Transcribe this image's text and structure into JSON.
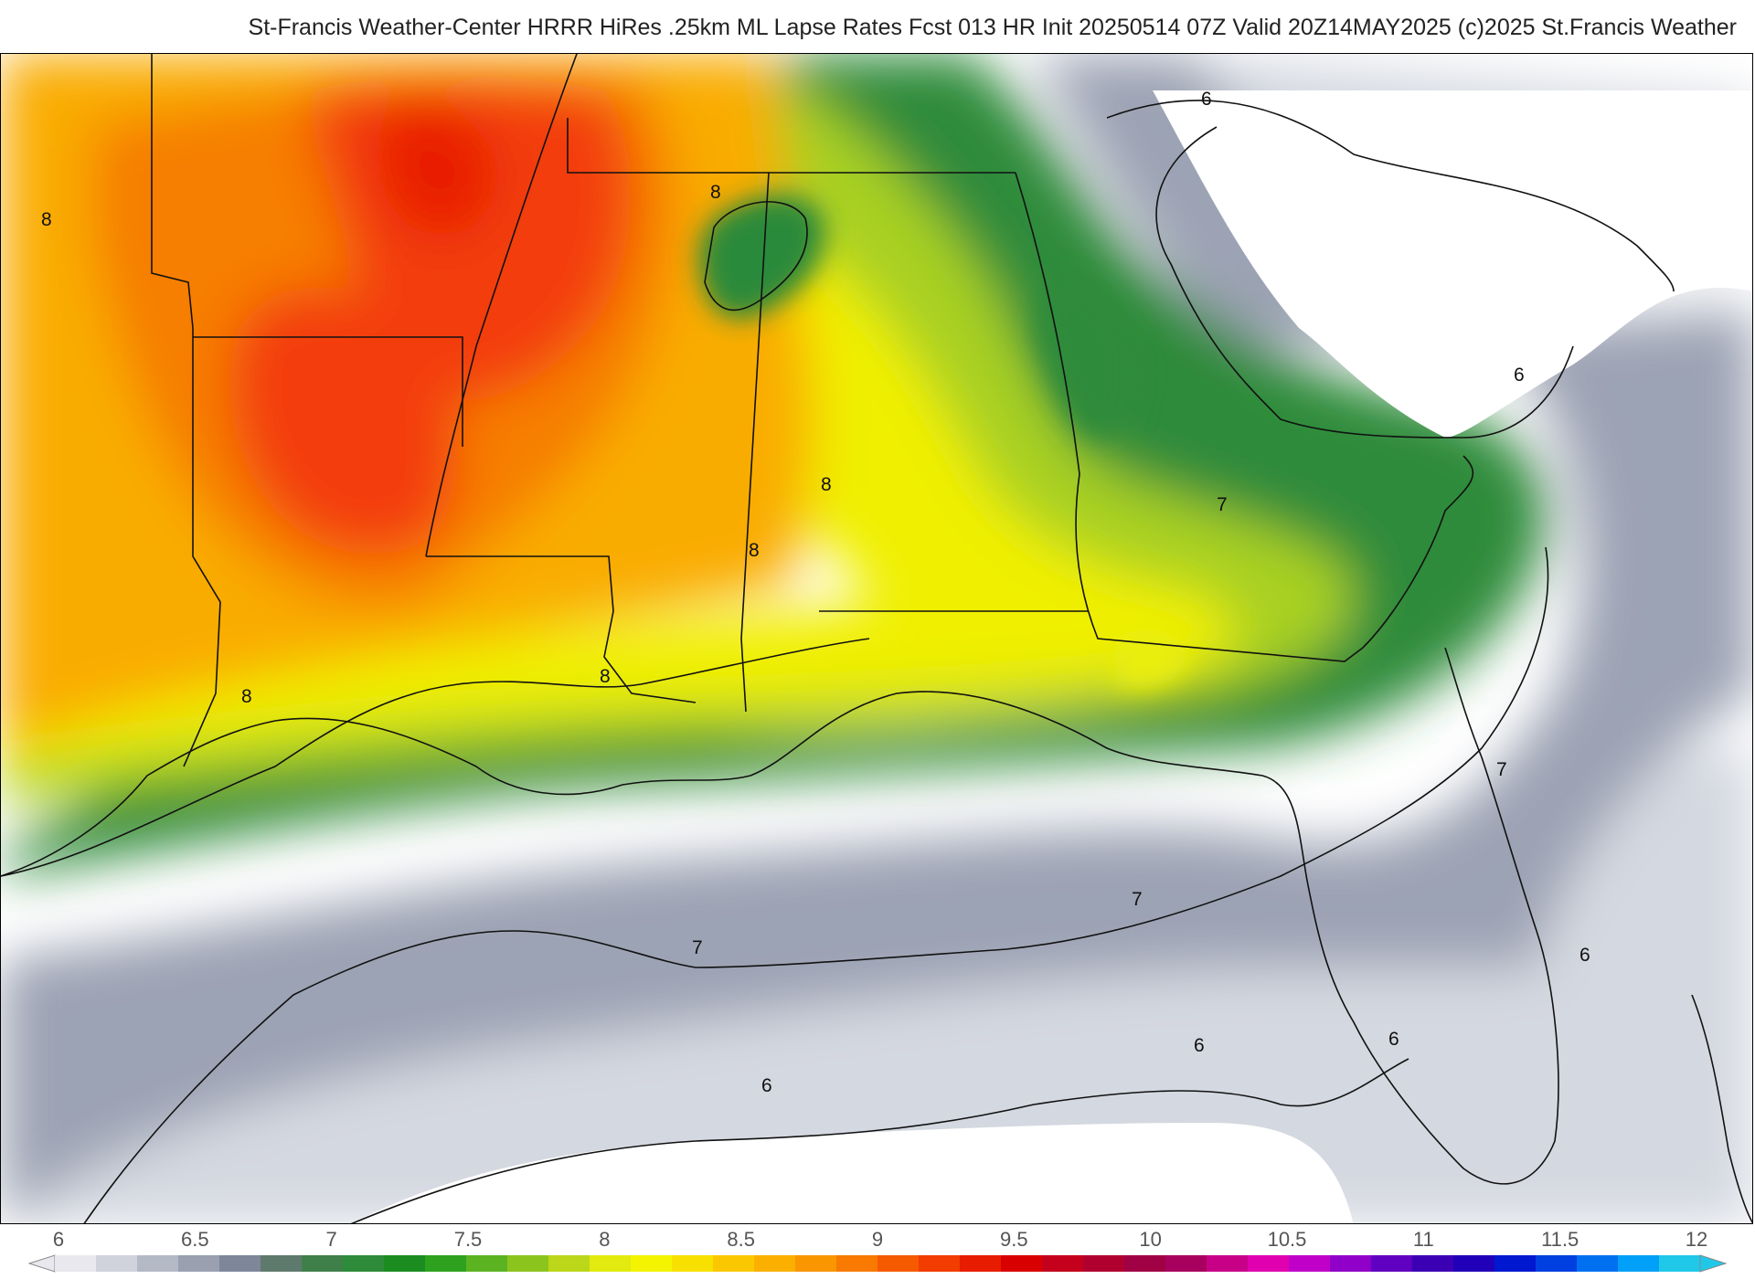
{
  "header": {
    "title": "St-Francis Weather-Center HRRR HiRes .25km ML Lapse Rates  Fcst 013 HR Init 20250514 07Z  Valid 20Z14MAY2025    (c)2025 St.Francis Weather"
  },
  "map": {
    "field": "ML Lapse Rates",
    "contour_labels": [
      "8",
      "8",
      "8",
      "8",
      "8",
      "8",
      "7",
      "7",
      "7",
      "7",
      "6",
      "6",
      "6",
      "6",
      "6",
      "6"
    ],
    "palette": {
      "land_bg": "#ffffff",
      "gray_6": "#d8dbe2",
      "gray_65": "#a4abba",
      "green_7": "#2e8b3a",
      "green_75": "#5aa82a",
      "yellowgreen": "#b8d820",
      "yellow_8": "#f4f400",
      "orange_85": "#fbb400",
      "orange_9": "#f98a00",
      "red_9": "#f44010",
      "red_95": "#e81c00"
    }
  },
  "colorbar": {
    "tick_labels": [
      "6",
      "6.5",
      "7",
      "7.5",
      "8",
      "8.5",
      "9",
      "9.5",
      "10",
      "10.5",
      "11",
      "11.5",
      "12"
    ],
    "colors": [
      "#e8e8ee",
      "#d0d3dc",
      "#b4b9c6",
      "#9aa0b0",
      "#7e869a",
      "#5e7a6c",
      "#3f7f4a",
      "#2e8b3a",
      "#1a8c20",
      "#2ea21e",
      "#5cb322",
      "#8cc41e",
      "#bcd61a",
      "#e2ea10",
      "#f4f400",
      "#f8e000",
      "#fbc800",
      "#fbb000",
      "#f99600",
      "#f87a00",
      "#f65a00",
      "#f23c00",
      "#e81c00",
      "#d80000",
      "#c4001c",
      "#b00030",
      "#a00044",
      "#a8005e",
      "#c80088",
      "#e000b0",
      "#c000c8",
      "#9000c8",
      "#6000c0",
      "#3c00b4",
      "#2000b8",
      "#0018d0",
      "#0040e0",
      "#0070f0",
      "#00a0f8",
      "#20c8e8"
    ]
  }
}
